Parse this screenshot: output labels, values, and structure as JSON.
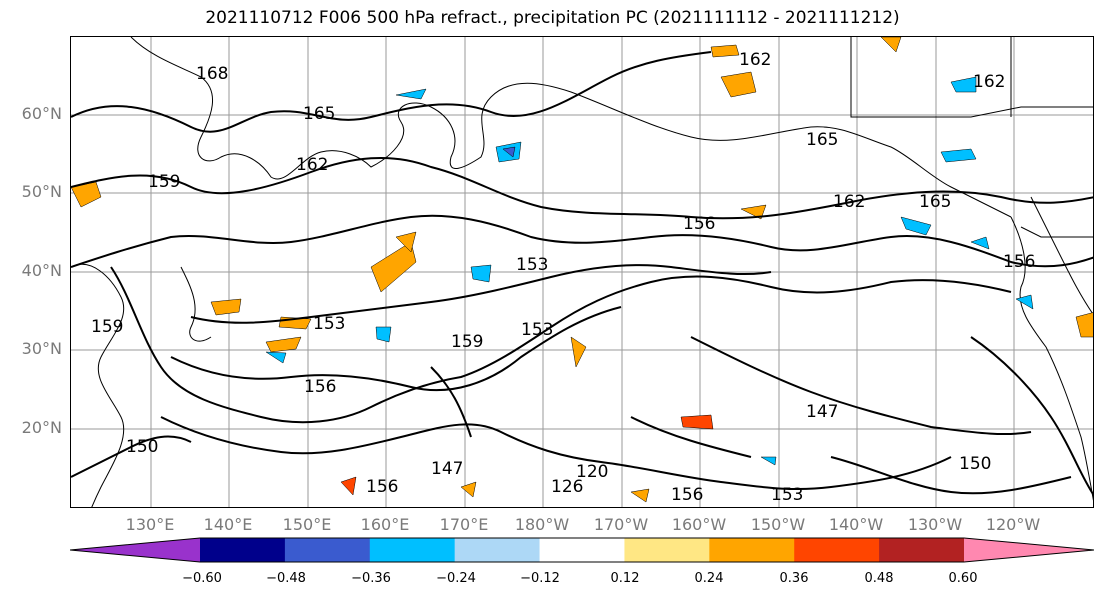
{
  "title": "2021110712 F006 500 hPa refract., precipitation PC (2021111112 - 2021111212)",
  "lat_labels": [
    "60°N",
    "50°N",
    "40°N",
    "30°N",
    "20°N"
  ],
  "lon_labels": [
    "130°E",
    "140°E",
    "150°E",
    "160°E",
    "170°E",
    "180°W",
    "170°W",
    "160°W",
    "150°W",
    "140°W",
    "130°W",
    "120°W"
  ],
  "colorbar": {
    "colors": [
      "#9932cc",
      "#00008b",
      "#3a5bcf",
      "#00bfff",
      "#add8f6",
      "#ffffff",
      "#ffe784",
      "#ffa500",
      "#ff4500",
      "#b22222",
      "#ff88b0"
    ],
    "tick_labels": [
      "−0.60",
      "−0.48",
      "−0.36",
      "−0.24",
      "−0.12",
      "0.12",
      "0.24",
      "0.36",
      "0.48",
      "0.60"
    ]
  },
  "contour_labels": [
    {
      "text": "168"
    },
    {
      "text": "165"
    },
    {
      "text": "162"
    },
    {
      "text": "159"
    },
    {
      "text": "162"
    },
    {
      "text": "165"
    },
    {
      "text": "162"
    },
    {
      "text": "165"
    },
    {
      "text": "162"
    },
    {
      "text": "156"
    },
    {
      "text": "153"
    },
    {
      "text": "153"
    },
    {
      "text": "159"
    },
    {
      "text": "153"
    },
    {
      "text": "156"
    },
    {
      "text": "159"
    },
    {
      "text": "156"
    },
    {
      "text": "156"
    },
    {
      "text": "147"
    },
    {
      "text": "147"
    },
    {
      "text": "150"
    },
    {
      "text": "156"
    },
    {
      "text": "153"
    },
    {
      "text": "150"
    },
    {
      "text": "126"
    },
    {
      "text": "120"
    }
  ]
}
